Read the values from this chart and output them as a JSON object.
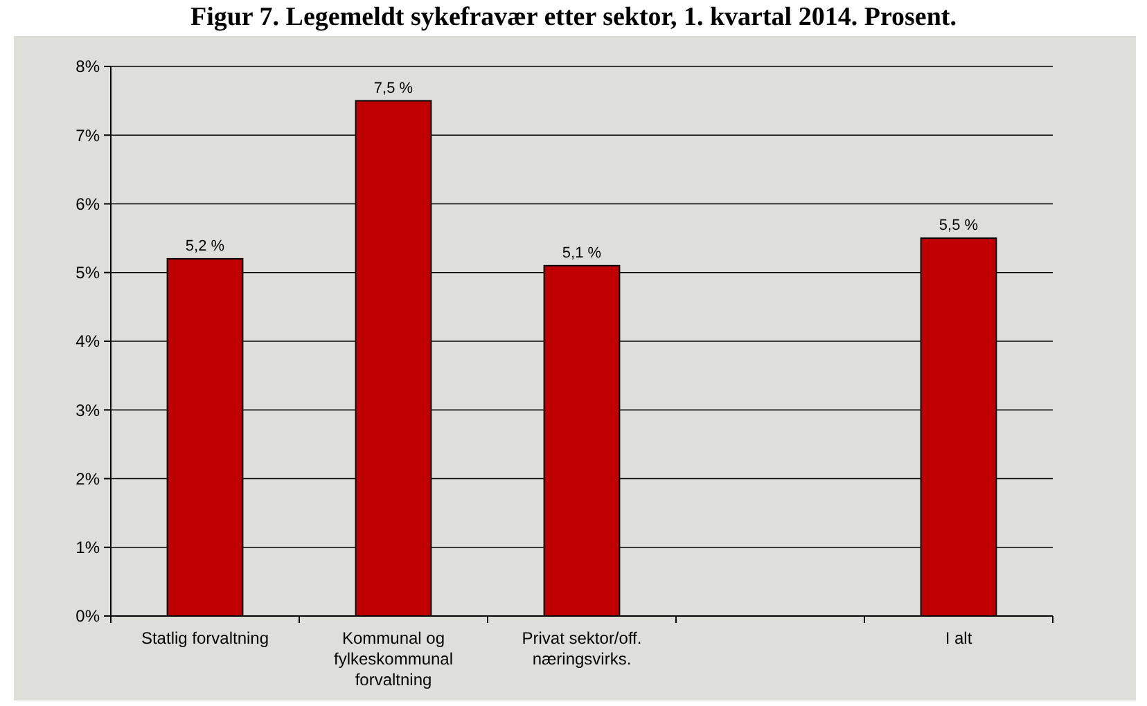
{
  "chart_data": {
    "type": "bar",
    "title": "Figur 7. Legemeldt sykefravær etter sektor, 1. kvartal 2014. Prosent.",
    "categories": [
      "Statlig forvaltning",
      "Kommunal og fylkeskommunal forvaltning",
      "Privat sektor/off. næringsvirks.",
      null,
      "I alt"
    ],
    "values": [
      5.2,
      7.5,
      5.1,
      null,
      5.5
    ],
    "value_labels": [
      "5,2 %",
      "7,5 %",
      "5,1 %",
      null,
      "5,5 %"
    ],
    "color": "#c00000",
    "ylim": [
      0,
      8
    ],
    "yticks": [
      {
        "value": 0,
        "label": "0%"
      },
      {
        "value": 1,
        "label": "1%"
      },
      {
        "value": 2,
        "label": "2%"
      },
      {
        "value": 3,
        "label": "3%"
      },
      {
        "value": 4,
        "label": "4%"
      },
      {
        "value": 5,
        "label": "5%"
      },
      {
        "value": 6,
        "label": "6%"
      },
      {
        "value": 7,
        "label": "7%"
      },
      {
        "value": 8,
        "label": "8%"
      }
    ],
    "grid": "y"
  }
}
